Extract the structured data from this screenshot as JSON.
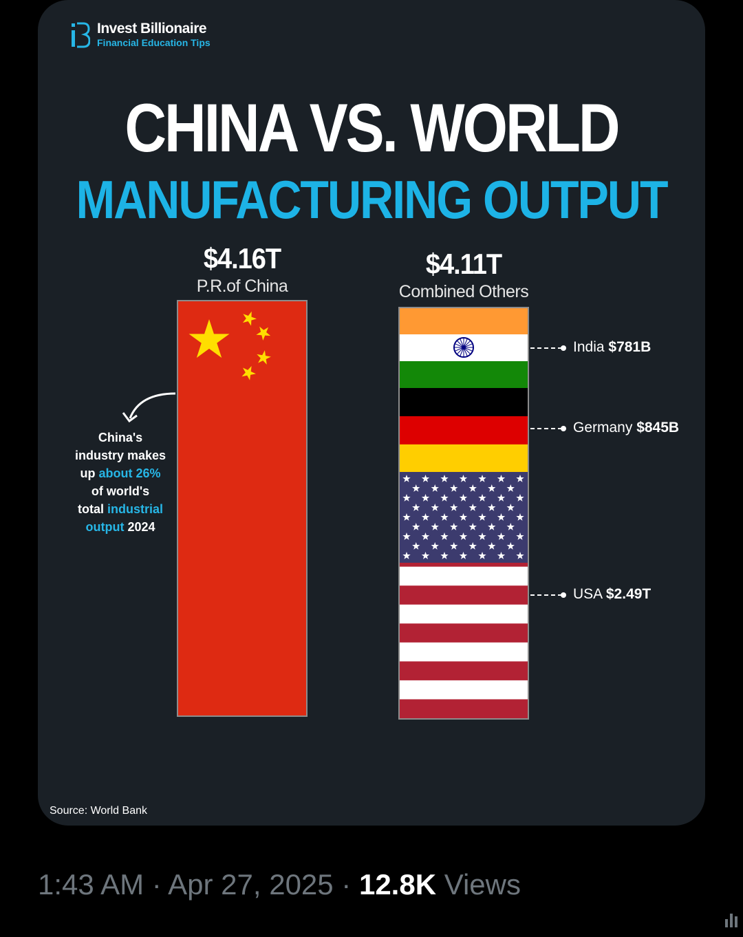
{
  "brand": {
    "name": "Invest Billionaire",
    "tagline": "Financial Education Tips"
  },
  "title": {
    "line1": "CHINA VS. WORLD",
    "line2": "MANUFACTURING OUTPUT"
  },
  "chart_data": {
    "type": "bar",
    "title": "CHINA VS. WORLD MANUFACTURING OUTPUT",
    "bars": [
      {
        "label": "P.R.of China",
        "value_label": "$4.16T",
        "value": 4.16,
        "unit": "T"
      },
      {
        "label": "Combined Others",
        "value_label": "$4.11T",
        "value": 4.11,
        "unit": "T",
        "segments": [
          {
            "name": "India",
            "value_label": "$781B",
            "value": 781,
            "unit": "B"
          },
          {
            "name": "Germany",
            "value_label": "$845B",
            "value": 845,
            "unit": "B"
          },
          {
            "name": "USA",
            "value_label": "$2.49T",
            "value": 2490,
            "unit": "B"
          }
        ]
      }
    ]
  },
  "annotation": {
    "line1": "China's",
    "line2": "industry makes",
    "line3a": "up ",
    "line3b": "about 26%",
    "line4": "of world's",
    "line5a": "total ",
    "line5b": "industrial",
    "line6a": "output",
    "line6b": " 2024"
  },
  "source": "Source: World Bank",
  "tweet": {
    "time": "1:43 AM",
    "sep1": " · ",
    "date": "Apr 27, 2025",
    "sep2": " · ",
    "views_count": "12.8K",
    "views_label": " Views"
  },
  "colors": {
    "accent": "#1db3e6",
    "china_red": "#de2a12",
    "star_yellow": "#ffde00"
  }
}
